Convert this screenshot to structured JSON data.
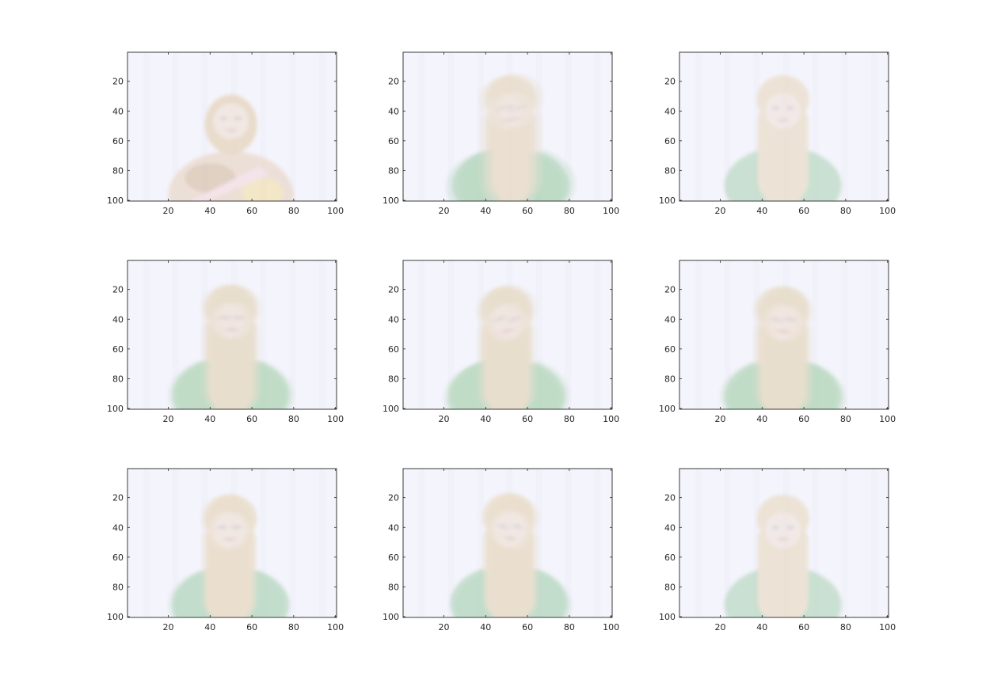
{
  "chart_data": [
    {
      "type": "heatmap",
      "xlim": [
        0.5,
        100.5
      ],
      "ylim": [
        0.5,
        100.5
      ],
      "y_reversed": true,
      "xticks": [
        20,
        40,
        60,
        80,
        100
      ],
      "yticks": [
        20,
        40,
        60,
        80,
        100
      ],
      "image": {
        "subject": "woman-with-patterned-scarf",
        "clothing": "scarf",
        "clothing_colors": [
          "#e2c8b0",
          "#c9a987",
          "#f2d2d8",
          "#f0d690"
        ],
        "hair_color": "#dcc098",
        "skin_color": "#ecd8c8",
        "background_color": "#f1f1fb",
        "head_center": [
          50,
          45
        ],
        "ghost_offsets": []
      }
    },
    {
      "type": "heatmap",
      "xlim": [
        0.5,
        100.5
      ],
      "ylim": [
        0.5,
        100.5
      ],
      "y_reversed": true,
      "xticks": [
        20,
        40,
        60,
        80,
        100
      ],
      "yticks": [
        20,
        40,
        60,
        80,
        100
      ],
      "image": {
        "subject": "long-haired-woman-green-top",
        "clothing": "top",
        "clothing_colors": [
          "#9ccaa8",
          "#e0d0b4"
        ],
        "hair_color": "#e2d2b8",
        "skin_color": "#ecdcd0",
        "background_color": "#f1f1fb",
        "head_center": [
          52,
          38
        ],
        "ghost_offsets": [
          [
            -3,
            1
          ],
          [
            3,
            -1
          ]
        ]
      }
    },
    {
      "type": "heatmap",
      "xlim": [
        0.5,
        100.5
      ],
      "ylim": [
        0.5,
        100.5
      ],
      "y_reversed": true,
      "xticks": [
        20,
        40,
        60,
        80,
        100
      ],
      "yticks": [
        20,
        40,
        60,
        80,
        100
      ],
      "image": {
        "subject": "long-haired-woman-green-top",
        "clothing": "top",
        "clothing_colors": [
          "#9ccaa8",
          "#e0d0b4"
        ],
        "hair_color": "#e2cfae",
        "skin_color": "#ecdcd0",
        "background_color": "#f1f1fb",
        "head_center": [
          50,
          38
        ],
        "ghost_offsets": []
      }
    },
    {
      "type": "heatmap",
      "xlim": [
        0.5,
        100.5
      ],
      "ylim": [
        0.5,
        100.5
      ],
      "y_reversed": true,
      "xticks": [
        20,
        40,
        60,
        80,
        100
      ],
      "yticks": [
        20,
        40,
        60,
        80,
        100
      ],
      "image": {
        "subject": "long-haired-woman-green-top",
        "clothing": "top",
        "clothing_colors": [
          "#a0cca8",
          "#e0d0b4"
        ],
        "hair_color": "#e0d0b4",
        "skin_color": "#ecdcd0",
        "background_color": "#f1f1fb",
        "head_center": [
          50,
          39
        ],
        "ghost_offsets": [
          [
            -2,
            0
          ],
          [
            2,
            0
          ]
        ]
      }
    },
    {
      "type": "heatmap",
      "xlim": [
        0.5,
        100.5
      ],
      "ylim": [
        0.5,
        100.5
      ],
      "y_reversed": true,
      "xticks": [
        20,
        40,
        60,
        80,
        100
      ],
      "yticks": [
        20,
        40,
        60,
        80,
        100
      ],
      "image": {
        "subject": "long-haired-woman-green-top",
        "clothing": "top",
        "clothing_colors": [
          "#a0cca8",
          "#e0d0b4"
        ],
        "hair_color": "#e0d0b4",
        "skin_color": "#ecdcd0",
        "background_color": "#f1f1fb",
        "head_center": [
          50,
          40
        ],
        "ghost_offsets": [
          [
            -2,
            1
          ],
          [
            2,
            -1
          ]
        ]
      }
    },
    {
      "type": "heatmap",
      "xlim": [
        0.5,
        100.5
      ],
      "ylim": [
        0.5,
        100.5
      ],
      "y_reversed": true,
      "xticks": [
        20,
        40,
        60,
        80,
        100
      ],
      "yticks": [
        20,
        40,
        60,
        80,
        100
      ],
      "image": {
        "subject": "long-haired-woman-green-top",
        "clothing": "top",
        "clothing_colors": [
          "#a0cca8",
          "#e0d0b4"
        ],
        "hair_color": "#e0d0b4",
        "skin_color": "#ecdcd0",
        "background_color": "#f1f1fb",
        "head_center": [
          50,
          40
        ],
        "ghost_offsets": [
          [
            -2,
            0
          ],
          [
            2,
            1
          ]
        ]
      }
    },
    {
      "type": "heatmap",
      "xlim": [
        0.5,
        100.5
      ],
      "ylim": [
        0.5,
        100.5
      ],
      "y_reversed": true,
      "xticks": [
        20,
        40,
        60,
        80,
        100
      ],
      "yticks": [
        20,
        40,
        60,
        80,
        100
      ],
      "image": {
        "subject": "long-haired-woman-green-top",
        "clothing": "top",
        "clothing_colors": [
          "#9ccaa8",
          "#e0d0b4"
        ],
        "hair_color": "#e2cfae",
        "skin_color": "#ecdcd0",
        "background_color": "#f1f1fb",
        "head_center": [
          50,
          40
        ],
        "ghost_offsets": [
          [
            -2,
            0
          ]
        ]
      }
    },
    {
      "type": "heatmap",
      "xlim": [
        0.5,
        100.5
      ],
      "ylim": [
        0.5,
        100.5
      ],
      "y_reversed": true,
      "xticks": [
        20,
        40,
        60,
        80,
        100
      ],
      "yticks": [
        20,
        40,
        60,
        80,
        100
      ],
      "image": {
        "subject": "long-haired-woman-green-top",
        "clothing": "top",
        "clothing_colors": [
          "#9ccaa8",
          "#e0d0b4"
        ],
        "hair_color": "#e2cfae",
        "skin_color": "#ecdcd0",
        "background_color": "#f1f1fb",
        "head_center": [
          51,
          39
        ],
        "ghost_offsets": [
          [
            2,
            1
          ]
        ]
      }
    },
    {
      "type": "heatmap",
      "xlim": [
        0.5,
        100.5
      ],
      "ylim": [
        0.5,
        100.5
      ],
      "y_reversed": true,
      "xticks": [
        20,
        40,
        60,
        80,
        100
      ],
      "yticks": [
        20,
        40,
        60,
        80,
        100
      ],
      "image": {
        "subject": "long-haired-woman-green-top",
        "clothing": "top",
        "clothing_colors": [
          "#9ccaa8",
          "#e0d0b4"
        ],
        "hair_color": "#e2cfae",
        "skin_color": "#ecdcd0",
        "background_color": "#f1f1fb",
        "head_center": [
          50,
          40
        ],
        "ghost_offsets": []
      }
    }
  ]
}
